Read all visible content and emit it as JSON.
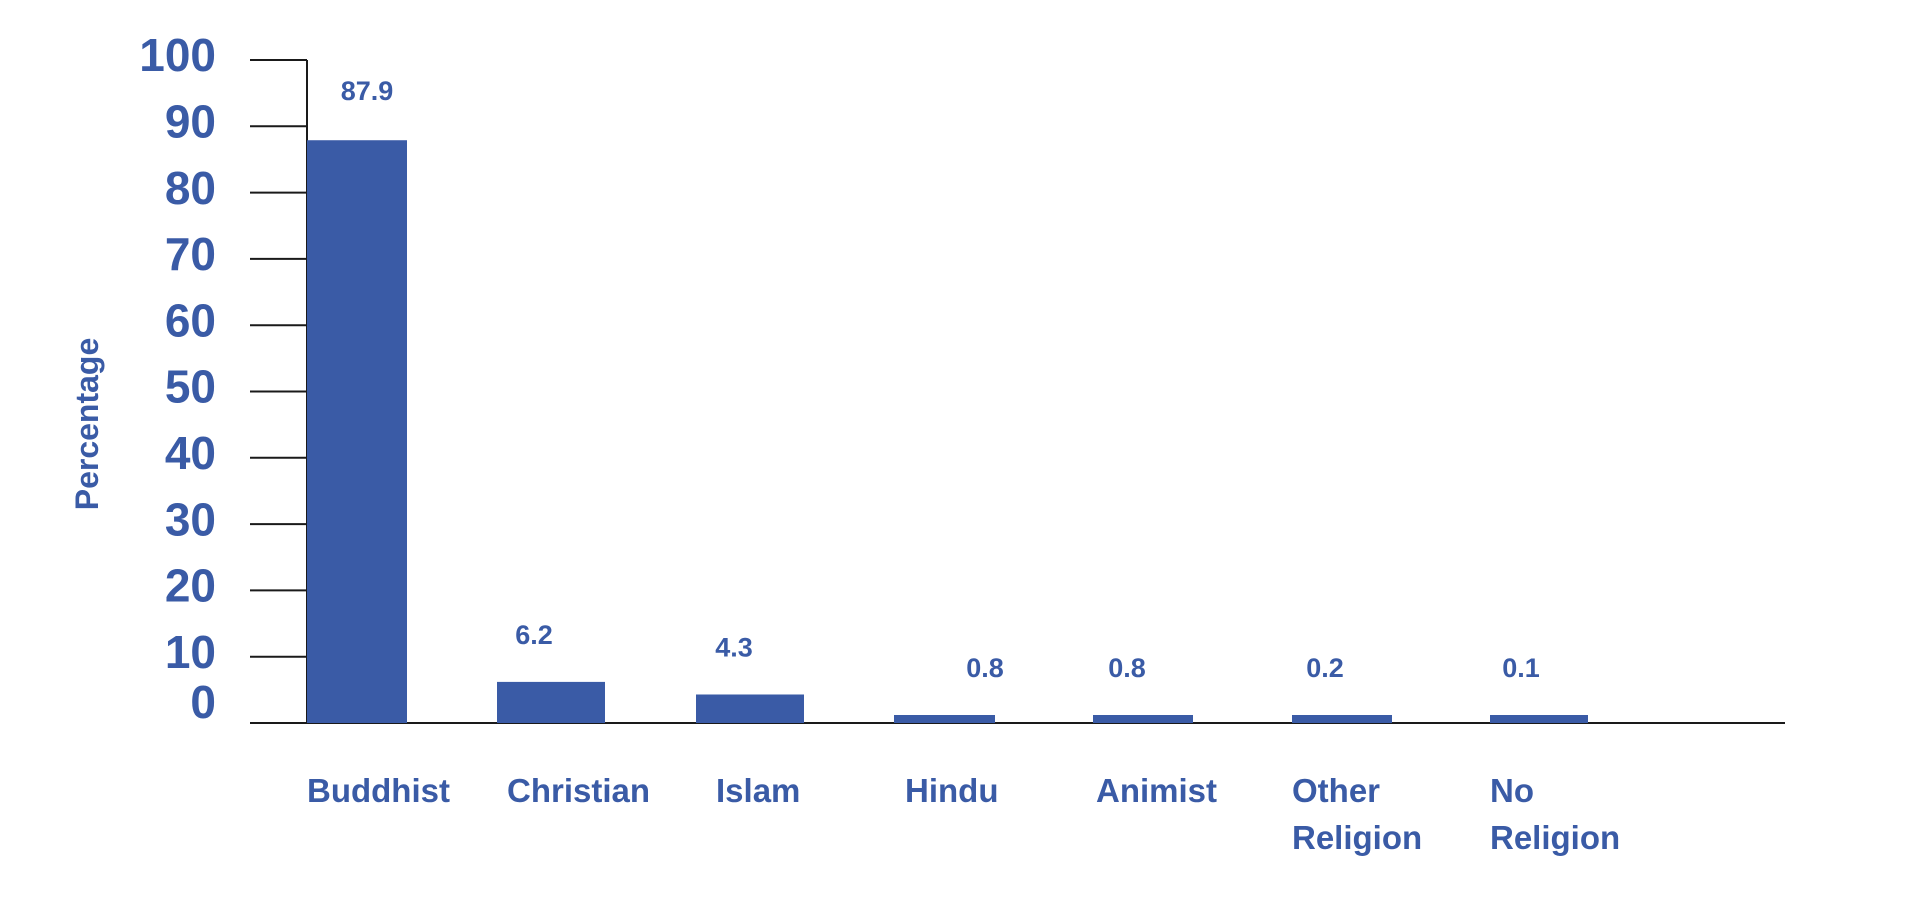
{
  "colors": {
    "bar": "#3a5ba6",
    "text": "#3a5ba6",
    "axis": "#1a1a1a"
  },
  "chart_data": {
    "type": "bar",
    "ylabel": "Percentage",
    "xlabel": "",
    "ylim": [
      0,
      100
    ],
    "yticks": [
      0,
      10,
      20,
      30,
      40,
      50,
      60,
      70,
      80,
      90,
      100
    ],
    "categories": [
      [
        "Buddhist"
      ],
      [
        "Christian"
      ],
      [
        "Islam"
      ],
      [
        "Hindu"
      ],
      [
        "Animist"
      ],
      [
        "Other",
        "Religion"
      ],
      [
        "No",
        "Religion"
      ]
    ],
    "values": [
      87.9,
      6.2,
      4.3,
      0.8,
      0.8,
      0.2,
      0.1
    ],
    "value_labels": [
      "87.9",
      "6.2",
      "4.3",
      "0.8",
      "0.8",
      "0.2",
      "0.1"
    ],
    "grid": false,
    "legend": "none"
  }
}
